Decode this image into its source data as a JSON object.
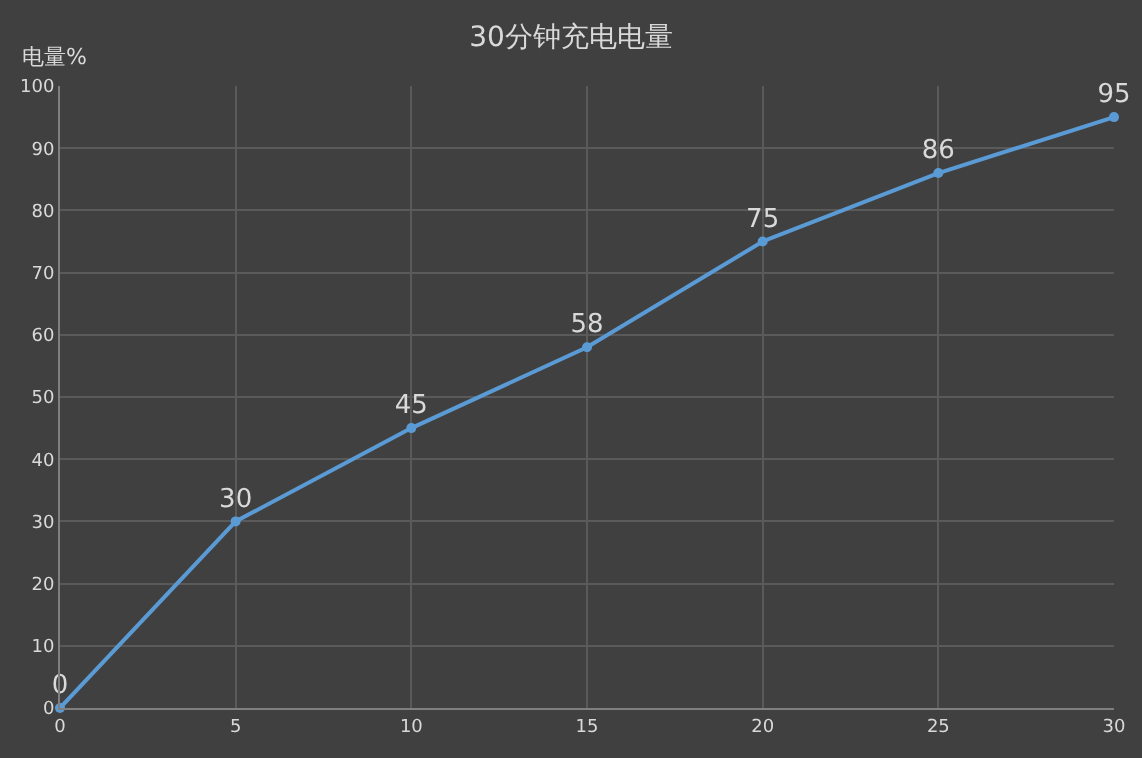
{
  "chart_data": {
    "type": "line",
    "title": "30分钟充电电量",
    "ylabel": "电量%",
    "x": [
      0,
      5,
      10,
      15,
      20,
      25,
      30
    ],
    "series": [
      {
        "color": "#5b9bd5",
        "values": [
          0,
          30,
          45,
          58,
          75,
          86,
          95
        ]
      }
    ],
    "xlim": [
      0,
      30
    ],
    "xticks": [
      0,
      5,
      10,
      15,
      20,
      25,
      30
    ],
    "ylim": [
      0,
      100
    ],
    "yticks": [
      0,
      10,
      20,
      30,
      40,
      50,
      60,
      70,
      80,
      90,
      100
    ],
    "grid": true,
    "marker": "circle",
    "data_labels": true,
    "legend": false
  }
}
